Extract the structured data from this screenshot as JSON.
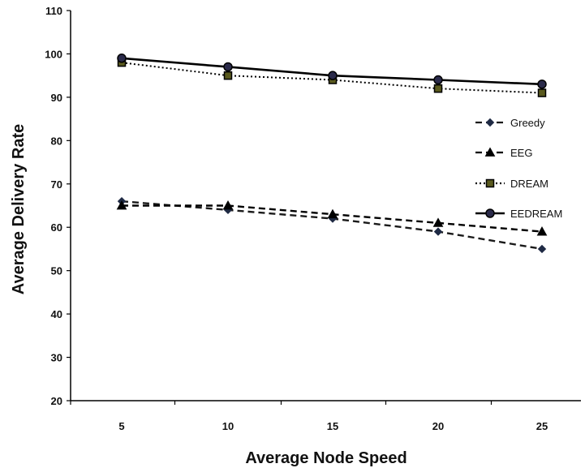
{
  "chart_data": {
    "type": "line",
    "title": "",
    "xlabel": "Average Node Speed",
    "ylabel": "Average Delivery Rate",
    "categories": [
      "5",
      "10",
      "15",
      "20",
      "25"
    ],
    "x": [
      5,
      10,
      15,
      20,
      25
    ],
    "ylim": [
      20,
      110
    ],
    "yticks": [
      "20",
      "30",
      "40",
      "50",
      "60",
      "70",
      "80",
      "90",
      "100",
      "110"
    ],
    "grid": false,
    "legend_position": "right",
    "series": [
      {
        "name": "Greedy",
        "values": [
          66,
          64,
          62,
          59,
          55
        ],
        "line_style": "dashed",
        "marker": "diamond",
        "color": "#1a1a1a",
        "marker_color": "#1f2a44"
      },
      {
        "name": "EEG",
        "values": [
          65,
          65,
          63,
          61,
          59
        ],
        "line_style": "dashed",
        "marker": "triangle",
        "color": "#000000",
        "marker_color": "#000000"
      },
      {
        "name": "DREAM",
        "values": [
          98,
          95,
          94,
          92,
          91
        ],
        "line_style": "dotted",
        "marker": "square",
        "color": "#000000",
        "marker_color": "#000000",
        "marker_fill": "#5a5a1e"
      },
      {
        "name": "EEDREAM",
        "values": [
          99,
          97,
          95,
          94,
          93
        ],
        "line_style": "solid",
        "marker": "circle",
        "color": "#000000",
        "marker_color": "#000000",
        "marker_fill": "#2a2a4a"
      }
    ]
  }
}
